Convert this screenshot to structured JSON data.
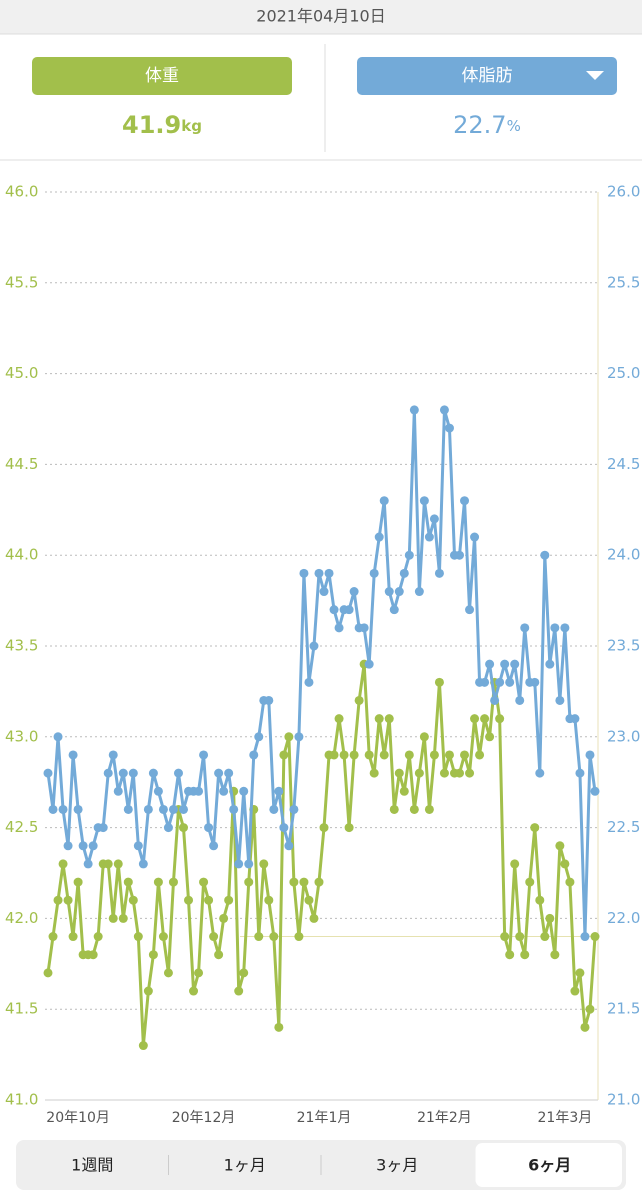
{
  "header": {
    "date": "2021年04月10日",
    "weight": {
      "label": "体重",
      "value": 41.9,
      "unit": "kg"
    },
    "body_fat": {
      "label": "体脂肪",
      "value": 22.7,
      "unit": "%"
    }
  },
  "chart_data": {
    "type": "line",
    "categories": [
      null,
      null,
      null,
      null,
      null,
      null,
      "20年10月",
      null,
      null,
      null,
      null,
      null,
      null,
      null,
      null,
      null,
      null,
      null,
      null,
      null,
      null,
      null,
      null,
      null,
      null,
      null,
      null,
      null,
      null,
      null,
      null,
      "20年12月",
      null,
      null,
      null,
      null,
      null,
      null,
      null,
      null,
      null,
      null,
      null,
      null,
      null,
      null,
      null,
      null,
      null,
      null,
      null,
      null,
      null,
      null,
      null,
      "21年1月",
      null,
      null,
      null,
      null,
      null,
      null,
      null,
      null,
      null,
      null,
      null,
      null,
      null,
      null,
      null,
      null,
      null,
      null,
      null,
      null,
      null,
      null,
      null,
      "21年2月",
      null,
      null,
      null,
      null,
      null,
      null,
      null,
      null,
      null,
      null,
      null,
      null,
      null,
      null,
      null,
      null,
      null,
      null,
      null,
      null,
      null,
      null,
      null,
      "21年3月",
      null,
      null,
      null,
      null,
      null,
      null
    ],
    "series": [
      {
        "color": "#a2bf4b",
        "values": [
          41.7,
          41.9,
          42.1,
          42.3,
          42.1,
          41.9,
          42.2,
          41.8,
          41.8,
          41.8,
          41.9,
          42.3,
          42.3,
          42.0,
          42.3,
          42.0,
          42.2,
          42.1,
          41.9,
          41.3,
          41.6,
          41.8,
          42.2,
          41.9,
          41.7,
          42.2,
          42.6,
          42.5,
          42.1,
          41.6,
          41.7,
          42.2,
          42.1,
          41.9,
          41.8,
          42.0,
          42.1,
          42.7,
          41.6,
          41.7,
          42.2,
          42.6,
          41.9,
          42.3,
          42.1,
          41.9,
          41.4,
          42.9,
          43.0,
          42.2,
          41.9,
          42.2,
          42.1,
          42.0,
          42.2,
          42.5,
          42.9,
          42.9,
          43.1,
          42.9,
          42.5,
          42.9,
          43.2,
          43.4,
          42.9,
          42.8,
          43.1,
          42.9,
          43.1,
          42.6,
          42.8,
          42.7,
          42.9,
          42.6,
          42.8,
          43.0,
          42.6,
          42.9,
          43.3,
          42.8,
          42.9,
          42.8,
          42.8,
          42.9,
          42.8,
          43.1,
          42.9,
          43.1,
          43.0,
          43.3,
          43.1,
          41.9,
          41.8,
          42.3,
          41.9,
          41.8,
          42.2,
          42.5,
          42.1,
          41.9,
          42.0,
          41.8,
          42.4,
          42.3,
          42.2,
          41.6,
          41.7,
          41.4,
          41.5,
          41.9
        ]
      },
      {
        "color": "#73aad8",
        "axis": "y2",
        "values": [
          22.8,
          22.6,
          23.0,
          22.6,
          22.4,
          22.9,
          22.6,
          22.4,
          22.3,
          22.4,
          22.5,
          22.5,
          22.8,
          22.9,
          22.7,
          22.8,
          22.6,
          22.8,
          22.4,
          22.3,
          22.6,
          22.8,
          22.7,
          22.6,
          22.5,
          22.6,
          22.8,
          22.6,
          22.7,
          22.7,
          22.7,
          22.9,
          22.5,
          22.4,
          22.8,
          22.7,
          22.8,
          22.6,
          22.3,
          22.7,
          22.3,
          22.9,
          23.0,
          23.2,
          23.2,
          22.6,
          22.7,
          22.5,
          22.4,
          22.6,
          23.0,
          23.9,
          23.3,
          23.5,
          23.9,
          23.8,
          23.9,
          23.7,
          23.6,
          23.7,
          23.7,
          23.8,
          23.6,
          23.6,
          23.4,
          23.9,
          24.1,
          24.3,
          23.8,
          23.7,
          23.8,
          23.9,
          24.0,
          24.8,
          23.8,
          24.3,
          24.1,
          24.2,
          23.9,
          24.8,
          24.7,
          24.0,
          24.0,
          24.3,
          23.7,
          24.1,
          23.3,
          23.3,
          23.4,
          23.2,
          23.3,
          23.4,
          23.3,
          23.4,
          23.2,
          23.6,
          23.3,
          23.3,
          22.8,
          24.0,
          23.4,
          23.6,
          23.2,
          23.6,
          23.1,
          23.1,
          22.8,
          21.9,
          22.9,
          22.7
        ]
      }
    ],
    "ylim": [
      41,
      46
    ],
    "yticks": [
      {
        "value": 41,
        "label": "41.0"
      },
      41.5,
      {
        "value": 42,
        "label": "42.0"
      },
      42.5,
      {
        "value": 43,
        "label": "43.0"
      },
      43.5,
      {
        "value": 44,
        "label": "44.0"
      },
      44.5,
      {
        "value": 45,
        "label": "45.0"
      },
      45.5,
      {
        "value": 46,
        "label": "46.0"
      }
    ],
    "y2lim": [
      21,
      26
    ],
    "y2ticks": [
      {
        "value": 21,
        "label": "21.0"
      },
      21.5,
      {
        "value": 22,
        "label": "22.0"
      },
      22.5,
      {
        "value": 23,
        "label": "23.0"
      },
      23.5,
      {
        "value": 24,
        "label": "24.0"
      },
      24.5,
      {
        "value": 25,
        "label": "25.0"
      },
      25.5,
      {
        "value": 26,
        "label": "26.0"
      }
    ],
    "grid": true
  },
  "tabs": [
    "1週間",
    "1ヶ月",
    "3ヶ月",
    "6ヶ月"
  ],
  "selected_tab": 3
}
